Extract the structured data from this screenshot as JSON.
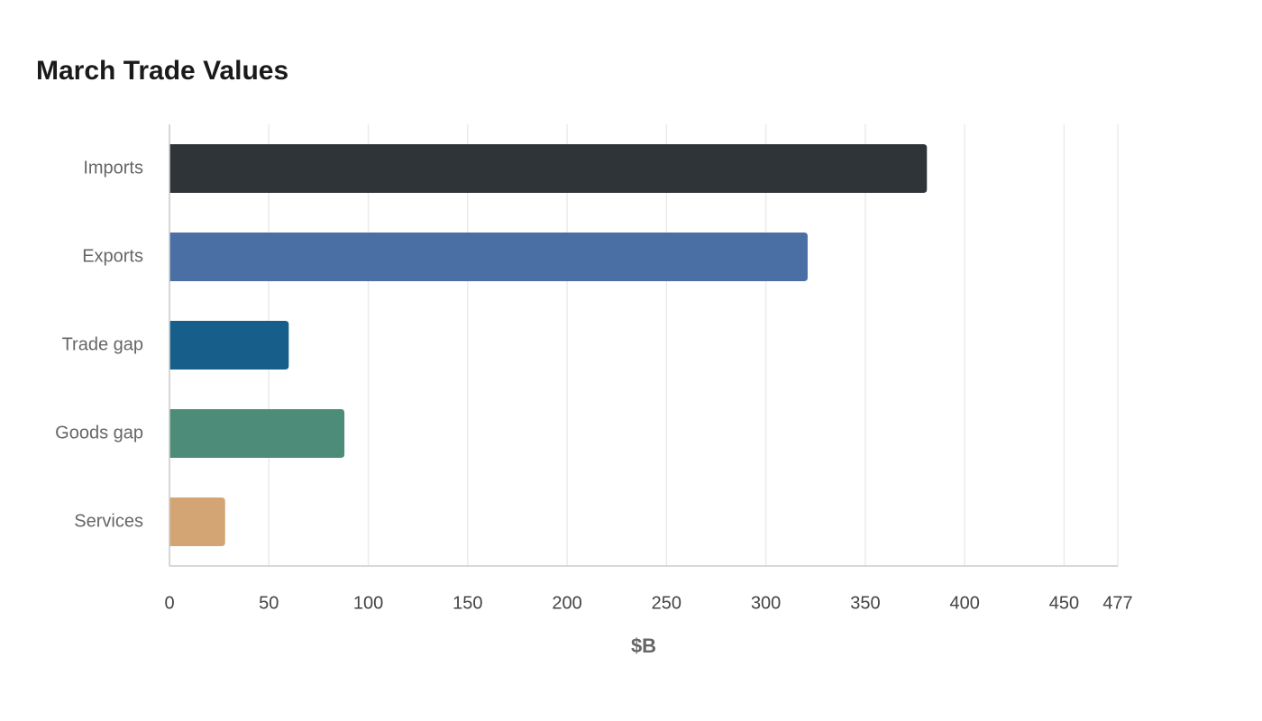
{
  "chart_data": {
    "type": "bar",
    "orientation": "horizontal",
    "title": "March Trade Values",
    "categories": [
      "Imports",
      "Exports",
      "Trade gap",
      "Goods gap",
      "Services"
    ],
    "values": [
      381,
      321,
      60,
      88,
      28
    ],
    "colors": [
      "#2e3438",
      "#4a6fa5",
      "#175f8a",
      "#4e8c7a",
      "#d4a574"
    ],
    "xlabel": "$B",
    "xlim": [
      0,
      477
    ],
    "xticks": [
      0,
      50,
      100,
      150,
      200,
      250,
      300,
      350,
      400,
      450,
      477
    ],
    "grid": true
  }
}
